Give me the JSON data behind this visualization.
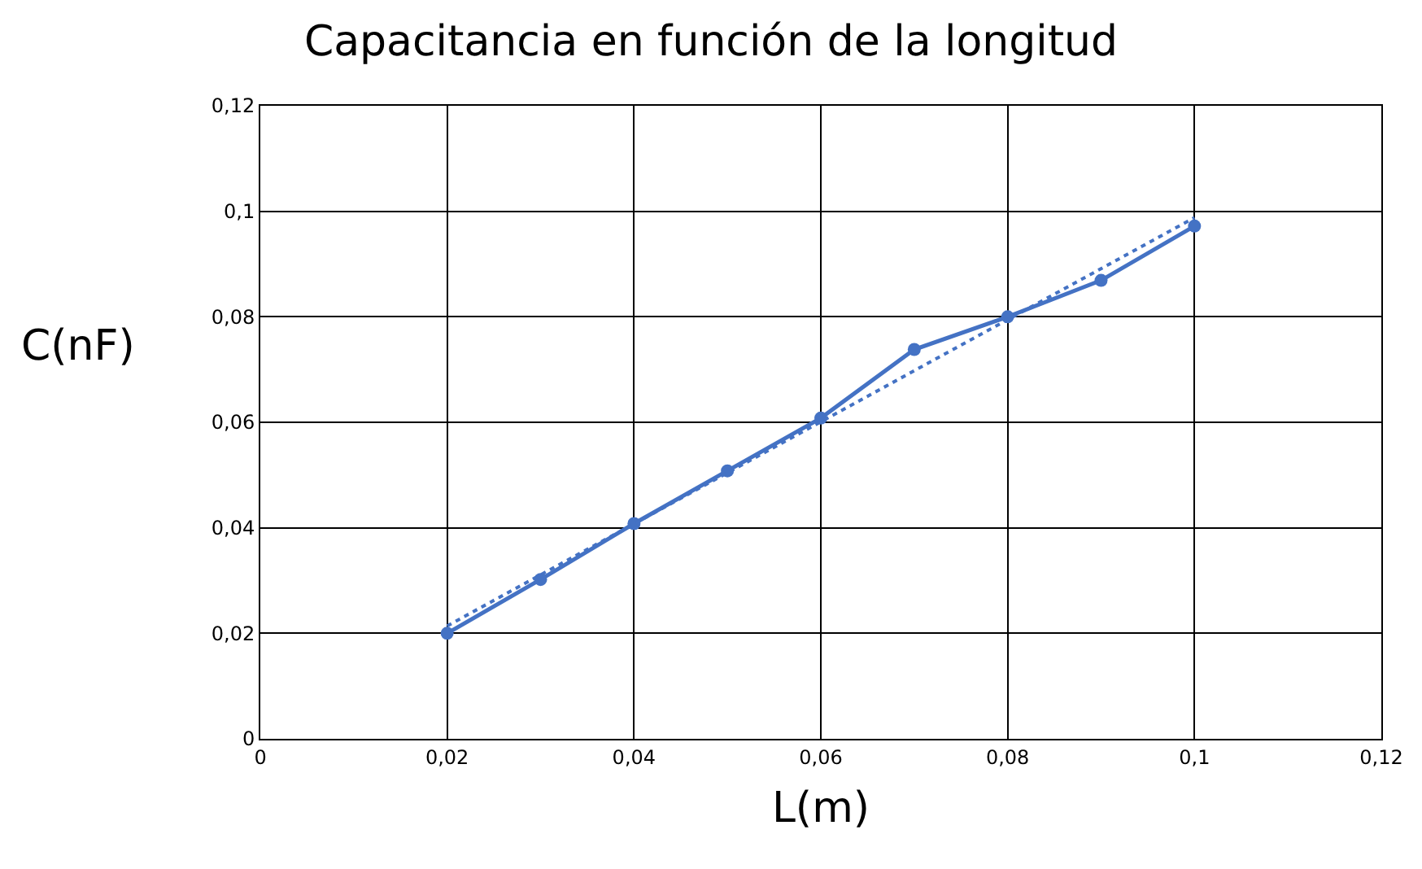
{
  "chart_data": {
    "type": "line",
    "title": "Capacitancia en función de la longitud",
    "xlabel": "L(m)",
    "ylabel": "C(nF)",
    "xlim": [
      0,
      0.12
    ],
    "xticks": [
      {
        "value": 0,
        "label": "0"
      },
      {
        "value": 0.02,
        "label": "0,02"
      },
      {
        "value": 0.04,
        "label": "0,04"
      },
      {
        "value": 0.06,
        "label": "0,06"
      },
      {
        "value": 0.08,
        "label": "0,08"
      },
      {
        "value": 0.1,
        "label": "0,1"
      },
      {
        "value": 0.12,
        "label": "0,12"
      }
    ],
    "ylim": [
      0,
      0.12
    ],
    "yticks": [
      {
        "value": 0,
        "label": "0"
      },
      {
        "value": 0.02,
        "label": "0,02"
      },
      {
        "value": 0.04,
        "label": "0,04"
      },
      {
        "value": 0.06,
        "label": "0,06"
      },
      {
        "value": 0.08,
        "label": "0,08"
      },
      {
        "value": 0.1,
        "label": "0,1"
      },
      {
        "value": 0.12,
        "label": "0,12"
      }
    ],
    "grid": true,
    "series": [
      {
        "color": "#4472c4",
        "marker": "circle",
        "line_style": "solid",
        "x": [
          0.02,
          0.03,
          0.04,
          0.05,
          0.06,
          0.07,
          0.08,
          0.09,
          0.1
        ],
        "values": [
          0.02,
          0.0302,
          0.0408,
          0.0508,
          0.0608,
          0.0738,
          0.08,
          0.0869,
          0.0972
        ]
      },
      {
        "color": "#4472c4",
        "marker": "none",
        "line_style": "dotted",
        "x": [
          0.02,
          0.1
        ],
        "values": [
          0.0214,
          0.0988
        ]
      }
    ]
  }
}
